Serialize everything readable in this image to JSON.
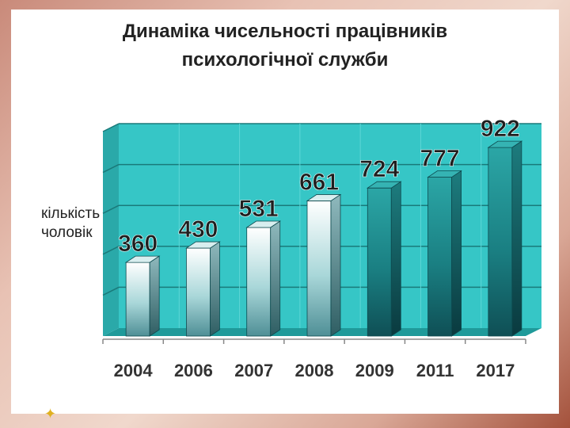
{
  "slide": {
    "title_line1": "Динаміка чисельності працівників",
    "title_line2": "психологічної служби",
    "ylabel_line1": "кількість",
    "ylabel_line2": "чоловік"
  },
  "chart_data": {
    "type": "bar",
    "categories": [
      "2004",
      "2006",
      "2007",
      "2008",
      "2009",
      "2011",
      "2017"
    ],
    "values": [
      360,
      430,
      531,
      661,
      724,
      777,
      922
    ],
    "title": "Динаміка чисельності працівників психологічної служби",
    "xlabel": "",
    "ylabel": "кількість чоловік",
    "ylim": [
      0,
      1000
    ],
    "grid": true,
    "colors": {
      "wall": "#36c6c6",
      "wall_dark": "#1f9a9a",
      "gridline": "#1a7a7a",
      "bar_gradient_light": [
        "#ffffff",
        "#a9d7d9",
        "#4f8f96"
      ],
      "bar_gradient_dark": [
        "#2ba6a6",
        "#1a7f82",
        "#0f4f55"
      ]
    }
  }
}
